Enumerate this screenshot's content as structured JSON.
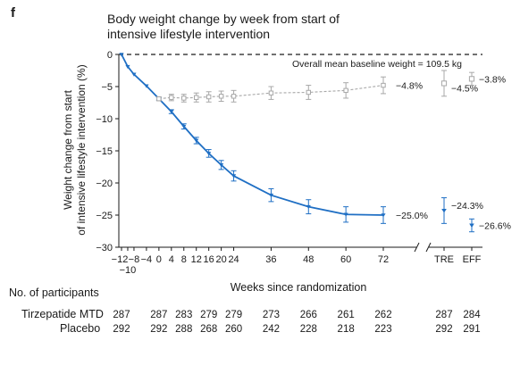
{
  "panel_label": "f",
  "chart_data": {
    "type": "line",
    "title": "Body weight change by week from start of intensive lifestyle intervention",
    "ylabel": "Weight change from start of intensive lifestyle intervention (%)",
    "xlabel": "Weeks since randomization",
    "ylim": [
      -30,
      0
    ],
    "yticks": [
      0,
      -5,
      -10,
      -15,
      -20,
      -25,
      -30
    ],
    "xticks": [
      {
        "x": -12,
        "label": "−12"
      },
      {
        "x": -10,
        "label": "−10"
      },
      {
        "x": -8,
        "label": "−8"
      },
      {
        "x": -4,
        "label": "−4"
      },
      {
        "x": 0,
        "label": "0"
      },
      {
        "x": 4,
        "label": "4"
      },
      {
        "x": 8,
        "label": "8"
      },
      {
        "x": 12,
        "label": "12"
      },
      {
        "x": 16,
        "label": "16"
      },
      {
        "x": 20,
        "label": "20"
      },
      {
        "x": 24,
        "label": "24"
      },
      {
        "x": 36,
        "label": "36"
      },
      {
        "x": 48,
        "label": "48"
      },
      {
        "x": 60,
        "label": "60"
      },
      {
        "x": 72,
        "label": "72"
      }
    ],
    "extra_categories": [
      "TRE",
      "EFF"
    ],
    "annotation": "Overall mean baseline weight = 109.5 kg",
    "series": [
      {
        "name": "Tirzepatide MTD",
        "color": "#1f6fc4",
        "x": [
          -12,
          -10,
          -8,
          -4,
          0,
          4,
          8,
          12,
          16,
          20,
          24,
          36,
          48,
          60,
          72
        ],
        "y": [
          0,
          -1.9,
          -3.1,
          -4.9,
          -6.9,
          -8.9,
          -11.2,
          -13.4,
          -15.4,
          -17.2,
          -18.9,
          -21.9,
          -23.7,
          -24.9,
          -25.0
        ],
        "err": [
          0,
          0,
          0,
          0,
          0.2,
          0.3,
          0.4,
          0.5,
          0.6,
          0.7,
          0.8,
          1.0,
          1.1,
          1.2,
          1.3
        ],
        "end_label": "−25.0%",
        "TRE": {
          "y": -24.3,
          "err": 2.0,
          "label": "−24.3%"
        },
        "EFF": {
          "y": -26.6,
          "err": 1.0,
          "label": "−26.6%"
        }
      },
      {
        "name": "Placebo",
        "color": "#a8a8a8",
        "x": [
          0,
          4,
          8,
          12,
          16,
          20,
          24,
          36,
          48,
          60,
          72
        ],
        "y": [
          -6.9,
          -6.7,
          -6.8,
          -6.7,
          -6.6,
          -6.5,
          -6.5,
          -6.0,
          -5.9,
          -5.6,
          -4.8
        ],
        "err": [
          0.3,
          0.5,
          0.6,
          0.7,
          0.8,
          0.8,
          0.9,
          1.0,
          1.1,
          1.2,
          1.3
        ],
        "end_label": "−4.8%",
        "TRE": {
          "y": -4.5,
          "err": 2.0,
          "label": "−4.5%"
        },
        "EFF": {
          "y": -3.8,
          "err": 1.0,
          "label": "−3.8%"
        }
      }
    ]
  },
  "participants": {
    "header": "No. of participants",
    "rows": [
      {
        "label": "Tirzepatide MTD",
        "counts": [
          "287",
          "287",
          "283",
          "279",
          "279",
          "273",
          "266",
          "261",
          "262",
          "287",
          "284"
        ]
      },
      {
        "label": "Placebo",
        "counts": [
          "292",
          "292",
          "288",
          "268",
          "260",
          "242",
          "228",
          "218",
          "223",
          "292",
          "291"
        ]
      }
    ],
    "count_positions": [
      -12,
      0,
      8,
      16,
      24,
      36,
      48,
      60,
      72,
      "TRE",
      "EFF"
    ]
  }
}
